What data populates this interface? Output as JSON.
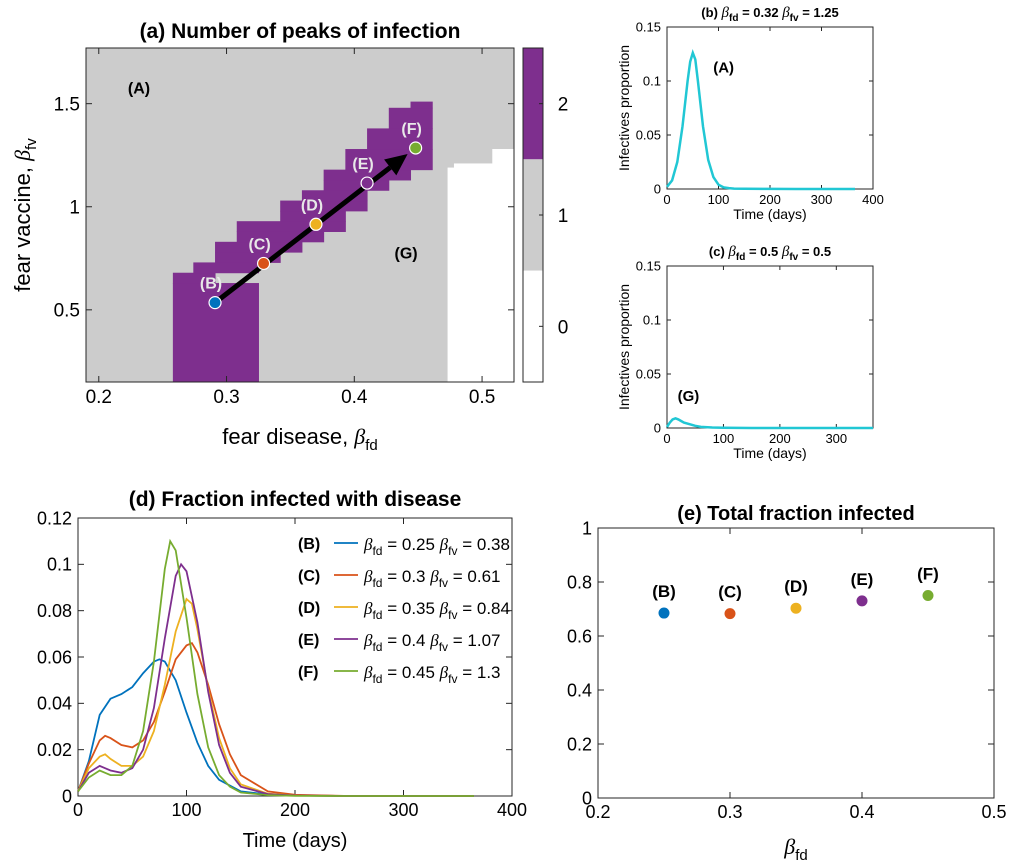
{
  "colors": {
    "gray": "#cccccc",
    "purple": "#7e2f8e",
    "white": "#ffffff",
    "cyan": "#21c7d4",
    "blue": "#0072bd",
    "orange": "#d95319",
    "yellow": "#edb120",
    "violet": "#7e2f8e",
    "green": "#77ac30"
  },
  "chart_data": [
    {
      "id": "a",
      "type": "heatmap",
      "title": "(a) Number of peaks of infection",
      "xlabel": "fear disease,",
      "xlabel_symbol": "β",
      "xlabel_sub": "fd",
      "ylabel": "fear vaccine,",
      "ylabel_symbol": "β",
      "ylabel_sub": "fv",
      "xlim": [
        0.19,
        0.525
      ],
      "ylim": [
        0.15,
        1.77
      ],
      "xticks": [
        0.2,
        0.3,
        0.4,
        0.5
      ],
      "xtick_labels": [
        "0.2",
        "0.3",
        "0.4",
        "0.5"
      ],
      "yticks": [
        0.5,
        1,
        1.5
      ],
      "ytick_labels": [
        "0.5",
        "1",
        "1.5"
      ],
      "colorbar_ticks": [
        0,
        1,
        2
      ],
      "colorbar_labels": [
        "0",
        "1",
        "2"
      ],
      "background_value": 1,
      "purple_cells": [
        [
          0.258,
          0.325,
          0.15,
          0.63
        ],
        [
          0.258,
          0.291,
          0.63,
          0.68
        ],
        [
          0.274,
          0.325,
          0.68,
          0.73
        ],
        [
          0.291,
          0.342,
          0.73,
          0.78
        ],
        [
          0.291,
          0.359,
          0.78,
          0.83
        ],
        [
          0.308,
          0.376,
          0.83,
          0.88
        ],
        [
          0.308,
          0.393,
          0.88,
          0.93
        ],
        [
          0.342,
          0.393,
          0.93,
          0.98
        ],
        [
          0.342,
          0.41,
          0.98,
          1.03
        ],
        [
          0.359,
          0.41,
          1.03,
          1.08
        ],
        [
          0.376,
          0.427,
          1.08,
          1.13
        ],
        [
          0.376,
          0.444,
          1.13,
          1.18
        ],
        [
          0.393,
          0.461,
          1.18,
          1.28
        ],
        [
          0.41,
          0.461,
          1.28,
          1.38
        ],
        [
          0.427,
          0.461,
          1.38,
          1.48
        ],
        [
          0.444,
          0.461,
          1.48,
          1.51
        ]
      ],
      "white_cells": [
        [
          0.473,
          0.525,
          0.15,
          1.19
        ],
        [
          0.478,
          0.525,
          1.19,
          1.21
        ],
        [
          0.508,
          0.525,
          1.21,
          1.28
        ]
      ],
      "points": [
        {
          "label": "(B)",
          "x": 0.291,
          "y": 0.535,
          "color": "#0072bd"
        },
        {
          "label": "(C)",
          "x": 0.329,
          "y": 0.725,
          "color": "#d95319"
        },
        {
          "label": "(D)",
          "x": 0.37,
          "y": 0.915,
          "color": "#edb120"
        },
        {
          "label": "(E)",
          "x": 0.41,
          "y": 1.115,
          "color": "#7e2f8e"
        },
        {
          "label": "(F)",
          "x": 0.448,
          "y": 1.285,
          "color": "#77ac30"
        }
      ],
      "region_labels": [
        {
          "text": "(A)",
          "x": 0.291,
          "y": 1.33
        },
        {
          "text": "(G)",
          "x": 0.5,
          "y": 0.53
        }
      ]
    },
    {
      "id": "b",
      "type": "line",
      "title_prefix": "(b)",
      "title_parts": [
        "= 0.32",
        "= 1.25"
      ],
      "xlabel": "Time (days)",
      "ylabel": "Infectives proportion",
      "xlim": [
        0,
        400
      ],
      "ylim": [
        0,
        0.15
      ],
      "xticks": [
        0,
        100,
        200,
        300,
        400
      ],
      "xtick_labels": [
        "0",
        "100",
        "200",
        "300",
        "400"
      ],
      "yticks": [
        0,
        0.05,
        0.1,
        0.15
      ],
      "ytick_labels": [
        "0",
        "0.05",
        "0.1",
        "0.15"
      ],
      "annotation": "(A)",
      "series": [
        {
          "x": [
            0,
            10,
            20,
            30,
            40,
            45,
            50,
            55,
            60,
            70,
            80,
            90,
            100,
            110,
            120,
            130,
            150,
            200,
            250,
            300,
            365
          ],
          "y": [
            0.002,
            0.008,
            0.025,
            0.058,
            0.1,
            0.118,
            0.126,
            0.12,
            0.1,
            0.058,
            0.027,
            0.011,
            0.004,
            0.0015,
            0.0008,
            0.0004,
            0.0002,
            0.0001,
            0,
            0,
            0
          ]
        }
      ]
    },
    {
      "id": "c",
      "type": "line",
      "title_prefix": "(c)",
      "title_parts": [
        "= 0.5",
        "= 0.5"
      ],
      "xlabel": "Time (days)",
      "ylabel": "Infectives proportion",
      "xlim": [
        0,
        365
      ],
      "ylim": [
        0,
        0.15
      ],
      "xticks": [
        0,
        100,
        200,
        300
      ],
      "xtick_labels": [
        "0",
        "100",
        "200",
        "300"
      ],
      "yticks": [
        0,
        0.05,
        0.1,
        0.15
      ],
      "ytick_labels": [
        "0",
        "0.05",
        "0.1",
        "0.15"
      ],
      "annotation": "(G)",
      "series": [
        {
          "x": [
            0,
            5,
            10,
            15,
            20,
            25,
            30,
            40,
            50,
            60,
            80,
            100,
            150,
            200,
            300,
            365
          ],
          "y": [
            0.001,
            0.005,
            0.008,
            0.009,
            0.008,
            0.0065,
            0.005,
            0.0035,
            0.002,
            0.001,
            0.0005,
            0.0002,
            0,
            0,
            0,
            0
          ]
        }
      ]
    },
    {
      "id": "d",
      "type": "line",
      "title": "(d) Fraction infected with disease",
      "xlabel": "Time (days)",
      "xlim": [
        0,
        400
      ],
      "ylim": [
        0,
        0.12
      ],
      "xticks": [
        0,
        100,
        200,
        300,
        400
      ],
      "xtick_labels": [
        "0",
        "100",
        "200",
        "300",
        "400"
      ],
      "yticks": [
        0,
        0.02,
        0.04,
        0.06,
        0.08,
        0.1,
        0.12
      ],
      "ytick_labels": [
        "0",
        "0.02",
        "0.04",
        "0.06",
        "0.08",
        "0.1",
        "0.12"
      ],
      "legend_position": "top-right",
      "series": [
        {
          "label": "(B)",
          "fd": "= 0.25",
          "fv": "= 0.38",
          "color": "#0072bd",
          "x": [
            0,
            10,
            20,
            30,
            40,
            50,
            60,
            70,
            75,
            80,
            90,
            100,
            110,
            120,
            130,
            150,
            175,
            200,
            250,
            365
          ],
          "y": [
            0.002,
            0.015,
            0.035,
            0.042,
            0.044,
            0.047,
            0.053,
            0.058,
            0.059,
            0.058,
            0.05,
            0.036,
            0.023,
            0.013,
            0.007,
            0.002,
            0.0006,
            0.0002,
            0,
            0
          ]
        },
        {
          "label": "(C)",
          "fd": "= 0.3",
          "fv": "= 0.61",
          "color": "#d95319",
          "x": [
            0,
            10,
            20,
            25,
            30,
            40,
            50,
            60,
            70,
            80,
            90,
            100,
            105,
            110,
            120,
            130,
            140,
            150,
            175,
            200,
            250,
            365
          ],
          "y": [
            0.002,
            0.014,
            0.024,
            0.026,
            0.025,
            0.022,
            0.021,
            0.024,
            0.032,
            0.045,
            0.059,
            0.065,
            0.066,
            0.062,
            0.048,
            0.031,
            0.018,
            0.009,
            0.002,
            0.0005,
            0,
            0
          ]
        },
        {
          "label": "(D)",
          "fd": "= 0.35",
          "fv": "= 0.84",
          "color": "#edb120",
          "x": [
            0,
            10,
            20,
            25,
            30,
            40,
            50,
            60,
            70,
            80,
            90,
            100,
            105,
            110,
            120,
            130,
            140,
            150,
            175,
            200,
            250,
            365
          ],
          "y": [
            0.002,
            0.012,
            0.017,
            0.018,
            0.016,
            0.013,
            0.013,
            0.017,
            0.028,
            0.048,
            0.071,
            0.085,
            0.083,
            0.072,
            0.046,
            0.025,
            0.012,
            0.005,
            0.001,
            0.0002,
            0,
            0
          ]
        },
        {
          "label": "(E)",
          "fd": "= 0.4",
          "fv": "= 1.07",
          "color": "#7e2f8e",
          "x": [
            0,
            10,
            20,
            25,
            30,
            40,
            50,
            60,
            70,
            80,
            90,
            95,
            100,
            110,
            120,
            130,
            140,
            150,
            175,
            200,
            250,
            365
          ],
          "y": [
            0.002,
            0.01,
            0.013,
            0.012,
            0.011,
            0.01,
            0.012,
            0.02,
            0.038,
            0.068,
            0.095,
            0.1,
            0.097,
            0.075,
            0.045,
            0.022,
            0.01,
            0.004,
            0.0008,
            0.0002,
            0,
            0
          ]
        },
        {
          "label": "(F)",
          "fd": "= 0.45",
          "fv": "= 1.3",
          "color": "#77ac30",
          "x": [
            0,
            10,
            20,
            25,
            30,
            40,
            50,
            60,
            70,
            80,
            85,
            90,
            100,
            110,
            120,
            130,
            140,
            150,
            175,
            200,
            250,
            365
          ],
          "y": [
            0.002,
            0.008,
            0.011,
            0.01,
            0.009,
            0.009,
            0.013,
            0.028,
            0.058,
            0.098,
            0.11,
            0.106,
            0.077,
            0.044,
            0.021,
            0.009,
            0.004,
            0.0015,
            0.0004,
            0.0001,
            0,
            0
          ]
        }
      ]
    },
    {
      "id": "e",
      "type": "scatter",
      "title": "(e) Total fraction infected",
      "xlabel_symbol": "β",
      "xlabel_sub": "fd",
      "xlim": [
        0.2,
        0.5
      ],
      "ylim": [
        0,
        1
      ],
      "xticks": [
        0.2,
        0.3,
        0.4,
        0.5
      ],
      "xtick_labels": [
        "0.2",
        "0.3",
        "0.4",
        "0.5"
      ],
      "yticks": [
        0,
        0.2,
        0.4,
        0.6,
        0.8,
        1
      ],
      "ytick_labels": [
        "0",
        "0.2",
        "0.4",
        "0.6",
        "0.8",
        "1"
      ],
      "points": [
        {
          "label": "(B)",
          "x": 0.25,
          "y": 0.685,
          "color": "#0072bd"
        },
        {
          "label": "(C)",
          "x": 0.3,
          "y": 0.683,
          "color": "#d95319"
        },
        {
          "label": "(D)",
          "x": 0.35,
          "y": 0.703,
          "color": "#edb120"
        },
        {
          "label": "(E)",
          "x": 0.4,
          "y": 0.73,
          "color": "#7e2f8e"
        },
        {
          "label": "(F)",
          "x": 0.45,
          "y": 0.75,
          "color": "#77ac30"
        }
      ]
    }
  ]
}
